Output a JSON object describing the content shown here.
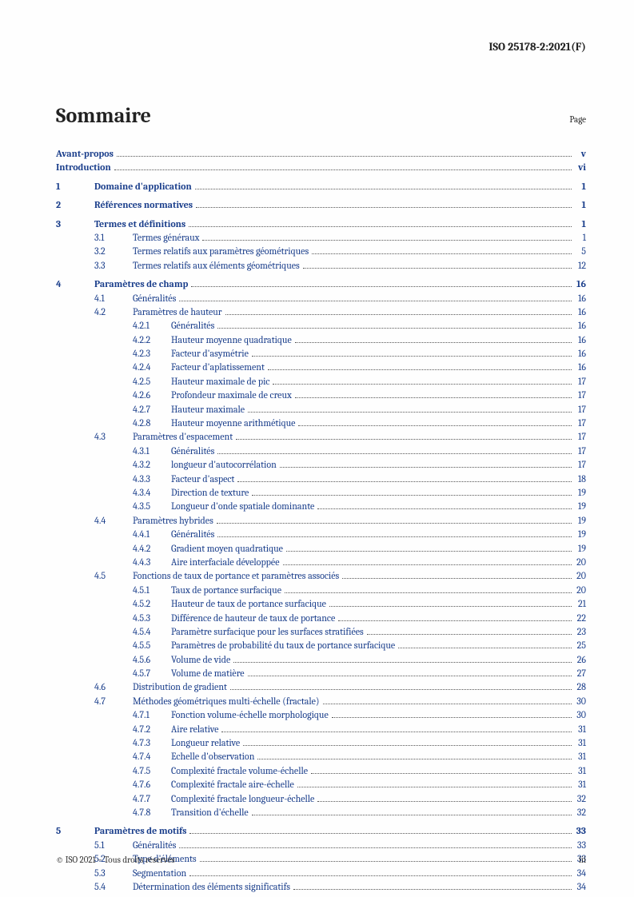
{
  "doc_header": "ISO 25178-2:2021(F)",
  "title": "Sommaire",
  "page_label": "Page",
  "footer_left": "© ISO 2021 – Tous droits réservés",
  "footer_right": "iii",
  "colors": {
    "link": "#1a3e8b",
    "text": "#222222",
    "dots": "#555555",
    "background": "#fefefe"
  },
  "typography": {
    "body_font": "Cambria, Georgia, serif",
    "title_size_pt": 20,
    "body_size_pt": 9
  },
  "toc": [
    {
      "level": 0,
      "num": "",
      "label": "Avant-propos",
      "page": "v",
      "link": true
    },
    {
      "level": 0,
      "num": "",
      "label": "Introduction",
      "page": "vi",
      "link": true
    },
    {
      "gap": true
    },
    {
      "level": 1,
      "num": "1",
      "label": "Domaine d'application",
      "page": "1",
      "link": true
    },
    {
      "gap": true
    },
    {
      "level": 1,
      "num": "2",
      "label": "Références normatives",
      "page": "1",
      "link": true
    },
    {
      "gap": true
    },
    {
      "level": 1,
      "num": "3",
      "label": "Termes et définitions",
      "page": "1",
      "link": true
    },
    {
      "level": 2,
      "num": "3.1",
      "label": "Termes généraux",
      "page": "1",
      "link": true
    },
    {
      "level": 2,
      "num": "3.2",
      "label": "Termes relatifs aux paramètres géométriques",
      "page": "5",
      "link": true
    },
    {
      "level": 2,
      "num": "3.3",
      "label": "Termes relatifs aux éléments géométriques",
      "page": "12",
      "link": true
    },
    {
      "gap": true
    },
    {
      "level": 1,
      "num": "4",
      "label": "Paramètres de champ",
      "page": "16",
      "link": true
    },
    {
      "level": 2,
      "num": "4.1",
      "label": "Généralités",
      "page": "16",
      "link": true
    },
    {
      "level": 2,
      "num": "4.2",
      "label": "Paramètres de hauteur",
      "page": "16",
      "link": true
    },
    {
      "level": 3,
      "num": "4.2.1",
      "label": "Généralités",
      "page": "16",
      "link": true
    },
    {
      "level": 3,
      "num": "4.2.2",
      "label": "Hauteur moyenne quadratique",
      "page": "16",
      "link": true
    },
    {
      "level": 3,
      "num": "4.2.3",
      "label": "Facteur d'asymétrie",
      "page": "16",
      "link": true
    },
    {
      "level": 3,
      "num": "4.2.4",
      "label": "Facteur d'aplatissement",
      "page": "16",
      "link": true
    },
    {
      "level": 3,
      "num": "4.2.5",
      "label": "Hauteur maximale de pic",
      "page": "17",
      "link": true
    },
    {
      "level": 3,
      "num": "4.2.6",
      "label": "Profondeur maximale de creux",
      "page": "17",
      "link": true
    },
    {
      "level": 3,
      "num": "4.2.7",
      "label": "Hauteur maximale",
      "page": "17",
      "link": true
    },
    {
      "level": 3,
      "num": "4.2.8",
      "label": "Hauteur moyenne arithmétique",
      "page": "17",
      "link": true
    },
    {
      "level": 2,
      "num": "4.3",
      "label": "Paramètres d'espacement",
      "page": "17",
      "link": true
    },
    {
      "level": 3,
      "num": "4.3.1",
      "label": "Généralités",
      "page": "17",
      "link": true
    },
    {
      "level": 3,
      "num": "4.3.2",
      "label": "longueur d'autocorrélation",
      "page": "17",
      "link": true
    },
    {
      "level": 3,
      "num": "4.3.3",
      "label": "Facteur d'aspect",
      "page": "18",
      "link": true
    },
    {
      "level": 3,
      "num": "4.3.4",
      "label": "Direction de texture",
      "page": "19",
      "link": true
    },
    {
      "level": 3,
      "num": "4.3.5",
      "label": "Longueur d'onde spatiale dominante",
      "page": "19",
      "link": true
    },
    {
      "level": 2,
      "num": "4.4",
      "label": "Paramètres hybrides",
      "page": "19",
      "link": true
    },
    {
      "level": 3,
      "num": "4.4.1",
      "label": "Généralités",
      "page": "19",
      "link": true
    },
    {
      "level": 3,
      "num": "4.4.2",
      "label": "Gradient moyen quadratique",
      "page": "19",
      "link": true
    },
    {
      "level": 3,
      "num": "4.4.3",
      "label": "Aire interfaciale développée",
      "page": "20",
      "link": true
    },
    {
      "level": 2,
      "num": "4.5",
      "label": "Fonctions de taux de portance et paramètres associés",
      "page": "20",
      "link": true
    },
    {
      "level": 3,
      "num": "4.5.1",
      "label": "Taux de portance surfacique",
      "page": "20",
      "link": true
    },
    {
      "level": 3,
      "num": "4.5.2",
      "label": "Hauteur de taux de portance surfacique",
      "page": "21",
      "link": true
    },
    {
      "level": 3,
      "num": "4.5.3",
      "label": "Différence de hauteur de taux de portance",
      "page": "22",
      "link": true
    },
    {
      "level": 3,
      "num": "4.5.4",
      "label": "Paramètre surfacique pour les surfaces stratifiées",
      "page": "23",
      "link": true
    },
    {
      "level": 3,
      "num": "4.5.5",
      "label": "Paramètres de probabilité du taux de portance surfacique",
      "page": "25",
      "link": true
    },
    {
      "level": 3,
      "num": "4.5.6",
      "label": "Volume de vide",
      "page": "26",
      "link": true
    },
    {
      "level": 3,
      "num": "4.5.7",
      "label": "Volume de matière",
      "page": "27",
      "link": true
    },
    {
      "level": 2,
      "num": "4.6",
      "label": "Distribution de gradient",
      "page": "28",
      "link": true
    },
    {
      "level": 2,
      "num": "4.7",
      "label": "Méthodes géométriques multi-échelle (fractale)",
      "page": "30",
      "link": true
    },
    {
      "level": 3,
      "num": "4.7.1",
      "label": "Fonction volume-échelle morphologique",
      "page": "30",
      "link": true
    },
    {
      "level": 3,
      "num": "4.7.2",
      "label": "Aire relative",
      "page": "31",
      "link": true
    },
    {
      "level": 3,
      "num": "4.7.3",
      "label": "Longueur relative",
      "page": "31",
      "link": true
    },
    {
      "level": 3,
      "num": "4.7.4",
      "label": "Echelle d'observation",
      "page": "31",
      "link": true
    },
    {
      "level": 3,
      "num": "4.7.5",
      "label": "Complexité fractale volume-échelle",
      "page": "31",
      "link": true
    },
    {
      "level": 3,
      "num": "4.7.6",
      "label": "Complexité fractale aire-échelle",
      "page": "31",
      "link": true
    },
    {
      "level": 3,
      "num": "4.7.7",
      "label": "Complexité fractale longueur-échelle",
      "page": "32",
      "link": true
    },
    {
      "level": 3,
      "num": "4.7.8",
      "label": "Transition d'échelle",
      "page": "32",
      "link": true
    },
    {
      "gap": true
    },
    {
      "level": 1,
      "num": "5",
      "label": "Paramètres de motifs",
      "page": "33",
      "link": true
    },
    {
      "level": 2,
      "num": "5.1",
      "label": "Généralités",
      "page": "33",
      "link": true
    },
    {
      "level": 2,
      "num": "5.2",
      "label": "Type d'éléments",
      "page": "33",
      "link": true
    },
    {
      "level": 2,
      "num": "5.3",
      "label": "Segmentation",
      "page": "34",
      "link": true
    },
    {
      "level": 2,
      "num": "5.4",
      "label": "Détermination des éléments significatifs",
      "page": "34",
      "link": true
    }
  ]
}
